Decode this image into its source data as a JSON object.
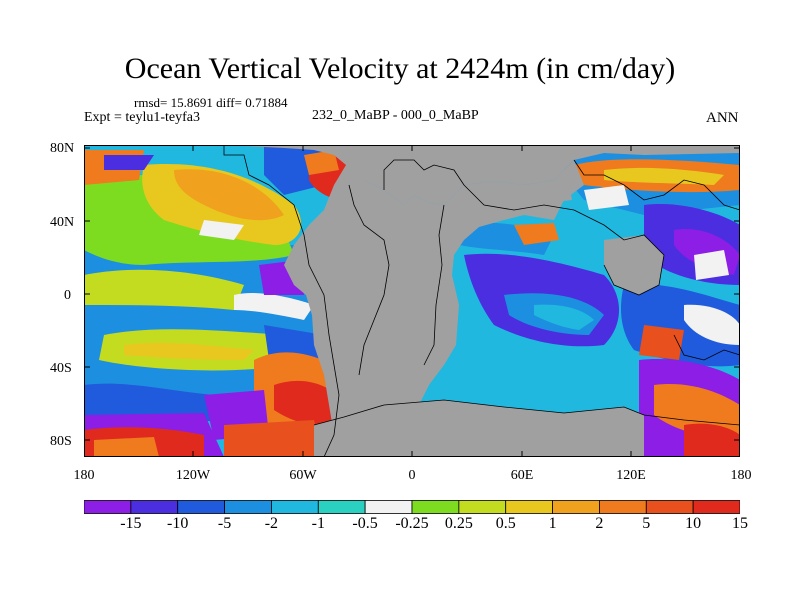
{
  "title": "Ocean Vertical Velocity at 2424m (in cm/day)",
  "stats": "rmsd= 15.8691 diff= 0.71884",
  "expt": "Expt = teylu1-teyfa3",
  "subtitle": "232_0_MaBP - 000_0_MaBP",
  "season": "ANN",
  "map": {
    "lat_labels": [
      "80N",
      "40N",
      "0",
      "40S",
      "80S"
    ],
    "lon_labels": [
      "180",
      "120W",
      "60W",
      "0",
      "60E",
      "120E",
      "180"
    ],
    "land_color": "#a0a0a0"
  },
  "colorbar": {
    "colors": [
      "#8c1ee6",
      "#4a2ee0",
      "#1f5bdc",
      "#1d8fe0",
      "#21b8e0",
      "#2ad0c0",
      "#f2f2f2",
      "#7ddc1f",
      "#c4dc20",
      "#e8c81e",
      "#f0a21e",
      "#f07a1e",
      "#e8501e",
      "#e02a1e"
    ],
    "labels": [
      "-15",
      "-10",
      "-5",
      "-2",
      "-1",
      "-0.5",
      "-0.25",
      "0.25",
      "0.5",
      "1",
      "2",
      "5",
      "10",
      "15"
    ]
  }
}
